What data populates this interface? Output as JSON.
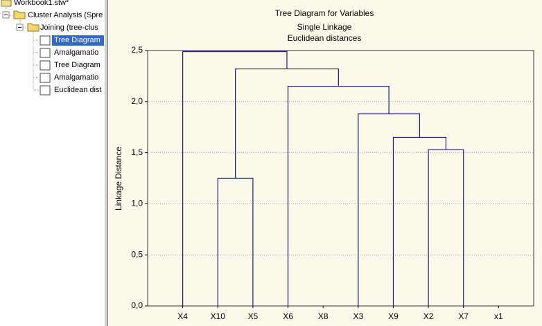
{
  "tree": {
    "items": [
      {
        "label": "Workbook1.stw*"
      },
      {
        "label": "Cluster Analysis (Spre"
      },
      {
        "label": "Joining (tree-clus"
      },
      {
        "label": "Tree Diagram"
      },
      {
        "label": "Amalgamatio"
      },
      {
        "label": "Tree Diagram"
      },
      {
        "label": "Amalgamatio"
      },
      {
        "label": "Euclidean dist"
      }
    ]
  },
  "chart_data": {
    "type": "dendrogram",
    "title": "Tree Diagram for  Variables",
    "subtitle": [
      "Single Linkage",
      "Euclidean distances"
    ],
    "y_label": "Linkage Distance",
    "categories": [
      "X4",
      "X10",
      "X5",
      "X6",
      "X8",
      "X3",
      "X9",
      "X2",
      "X7",
      "x1"
    ],
    "merges": [
      {
        "left": [
          "X2"
        ],
        "right": [
          "X7"
        ],
        "height": 1.53
      },
      {
        "left": [
          "X9"
        ],
        "right": [
          "X2",
          "X7"
        ],
        "height": 1.65
      },
      {
        "left": [
          "X3"
        ],
        "right": [
          "X9",
          "X2",
          "X7"
        ],
        "height": 1.88
      },
      {
        "left": [
          "X10"
        ],
        "right": [
          "X5"
        ],
        "height": 1.25
      },
      {
        "left": [
          "X6"
        ],
        "right": [
          "X3",
          "X9",
          "X2",
          "X7"
        ],
        "height": 2.15
      },
      {
        "left": [
          "X10",
          "X5"
        ],
        "right": [
          "X6",
          "X3",
          "X9",
          "X2",
          "X7"
        ],
        "height": 2.32
      },
      {
        "left": [
          "X4"
        ],
        "right": [
          "X10",
          "X5",
          "X6",
          "X3",
          "X9",
          "X2",
          "X7"
        ],
        "height": 2.49
      }
    ],
    "color": "#1c1c78",
    "ylim": [
      0,
      2.5
    ],
    "yticks": [
      {
        "value": 0,
        "label": "0,0"
      },
      {
        "value": 0.5,
        "label": "0,5"
      },
      {
        "value": 1,
        "label": "1,0"
      },
      {
        "value": 1.5,
        "label": "1,5"
      },
      {
        "value": 2,
        "label": "2,0"
      },
      {
        "value": 2.5,
        "label": "2,5"
      }
    ],
    "grid": true
  }
}
